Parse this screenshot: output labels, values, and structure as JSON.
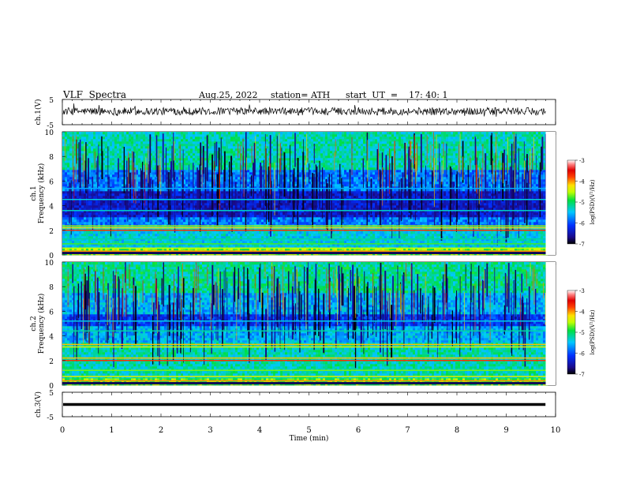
{
  "header": {
    "title": "VLF  Spectra",
    "date": "Aug.25, 2022",
    "station": "station= ATH",
    "start": "start  UT  =    17: 40: 1"
  },
  "chart_data": [
    {
      "type": "line",
      "panel": "ch1-waveform",
      "ylabel": "ch.1(V)",
      "yticks": [
        "5",
        "-5"
      ],
      "ylim": [
        -5,
        5
      ],
      "xlim": [
        0,
        10
      ],
      "approx_baseline_v": 0.3,
      "approx_amplitude_v": 1.5,
      "data_end_min": 9.8,
      "color": "#000000"
    },
    {
      "type": "heatmap",
      "panel": "ch1-spectrogram",
      "ylabel": "ch.1\nFrequency  (kHz)",
      "yticks": [
        "0",
        "2",
        "4",
        "6",
        "8",
        "10"
      ],
      "ylim": [
        0,
        10
      ],
      "xlim": [
        0,
        10
      ],
      "data_end_min": 9.8,
      "colorbar": {
        "label": "log(PSD)(V²/Hz)",
        "ticks": [
          "-3",
          "-4",
          "-5",
          "-6",
          "-7"
        ],
        "range": [
          -7,
          -3
        ]
      }
    },
    {
      "type": "heatmap",
      "panel": "ch2-spectrogram",
      "ylabel": "ch.2\nFrequency  (kHz)",
      "yticks": [
        "0",
        "2",
        "4",
        "6",
        "8",
        "10"
      ],
      "ylim": [
        0,
        10
      ],
      "xlim": [
        0,
        10
      ],
      "data_end_min": 9.8,
      "colorbar": {
        "label": "log(PSD)(V²/Hz)",
        "ticks": [
          "-3",
          "-4",
          "-5",
          "-6",
          "-7"
        ],
        "range": [
          -7,
          -3
        ]
      }
    },
    {
      "type": "line",
      "panel": "ch3-waveform",
      "ylabel": "ch.3(V)",
      "yticks": [
        "5",
        "-5"
      ],
      "ylim": [
        -5,
        5
      ],
      "xlim": [
        0,
        10
      ],
      "approx_baseline_v": 0.0,
      "data_end_min": 9.8,
      "color": "#000000"
    }
  ],
  "xaxis": {
    "label": "Time  (min)",
    "ticks": [
      "0",
      "1",
      "2",
      "3",
      "4",
      "5",
      "6",
      "7",
      "8",
      "9",
      "10"
    ]
  }
}
